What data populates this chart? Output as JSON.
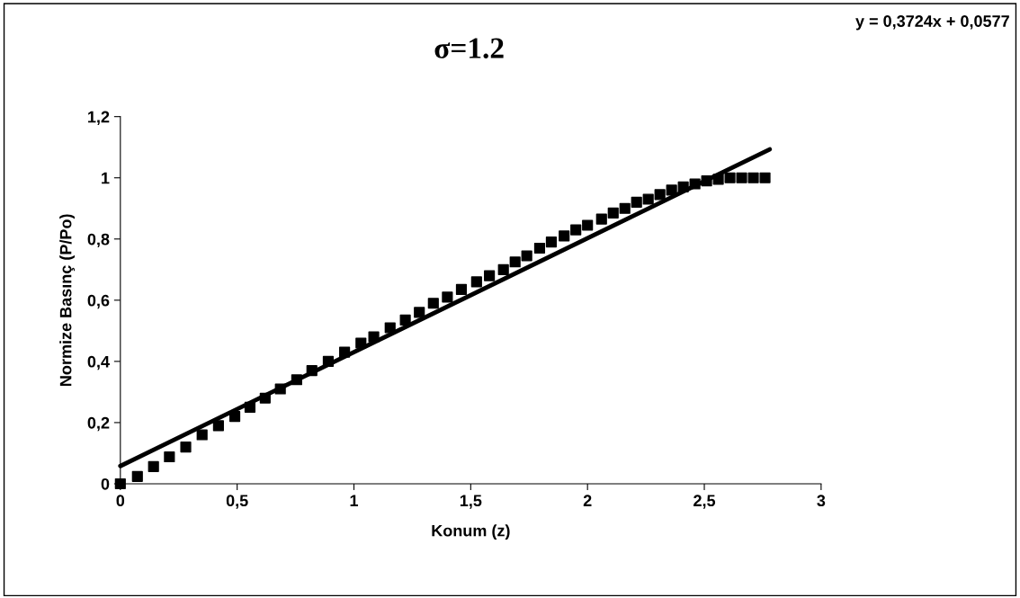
{
  "chart_data": {
    "type": "scatter",
    "title": "σ=1.2",
    "xlabel": "Konum (z)",
    "ylabel": "Normize Basınç (P/Po)",
    "annotations": [
      "y = 0,3724x + 0,0577"
    ],
    "series": [
      {
        "color": "#000000",
        "marker": "square",
        "x": [
          0,
          0.073,
          0.142,
          0.21,
          0.28,
          0.35,
          0.42,
          0.49,
          0.555,
          0.62,
          0.685,
          0.755,
          0.82,
          0.89,
          0.96,
          1.03,
          1.085,
          1.155,
          1.22,
          1.28,
          1.34,
          1.4,
          1.46,
          1.525,
          1.58,
          1.64,
          1.69,
          1.74,
          1.795,
          1.845,
          1.9,
          1.95,
          2.0,
          2.06,
          2.11,
          2.16,
          2.21,
          2.26,
          2.31,
          2.36,
          2.41,
          2.46,
          2.51,
          2.56,
          2.61,
          2.66,
          2.71,
          2.76
        ],
        "values": [
          0,
          0.024,
          0.056,
          0.088,
          0.12,
          0.16,
          0.19,
          0.22,
          0.25,
          0.28,
          0.31,
          0.34,
          0.37,
          0.4,
          0.43,
          0.46,
          0.48,
          0.51,
          0.535,
          0.56,
          0.59,
          0.61,
          0.635,
          0.66,
          0.68,
          0.7,
          0.725,
          0.745,
          0.77,
          0.79,
          0.81,
          0.83,
          0.845,
          0.865,
          0.885,
          0.9,
          0.92,
          0.93,
          0.945,
          0.96,
          0.97,
          0.98,
          0.99,
          0.995,
          1.0,
          1.0,
          1.0,
          1.0
        ]
      },
      {
        "type": "line",
        "color": "#000000",
        "marker": "none",
        "line_style": "solid",
        "x": [
          0,
          2.78
        ],
        "values": [
          0.058,
          1.093
        ]
      }
    ],
    "xlim": [
      0,
      3
    ],
    "ylim": [
      0,
      1.2
    ],
    "xticks": [
      0,
      {
        "value": 0.5,
        "label": "0,5"
      },
      1,
      {
        "value": 1.5,
        "label": "1,5"
      },
      2,
      {
        "value": 2.5,
        "label": "2,5"
      },
      3
    ],
    "yticks": [
      0,
      {
        "value": 0.2,
        "label": "0,2"
      },
      {
        "value": 0.4,
        "label": "0,4"
      },
      {
        "value": 0.6,
        "label": "0,6"
      },
      {
        "value": 0.8,
        "label": "0,8"
      },
      1,
      {
        "value": 1.2,
        "label": "1,2"
      }
    ],
    "grid": false,
    "legend": false
  }
}
